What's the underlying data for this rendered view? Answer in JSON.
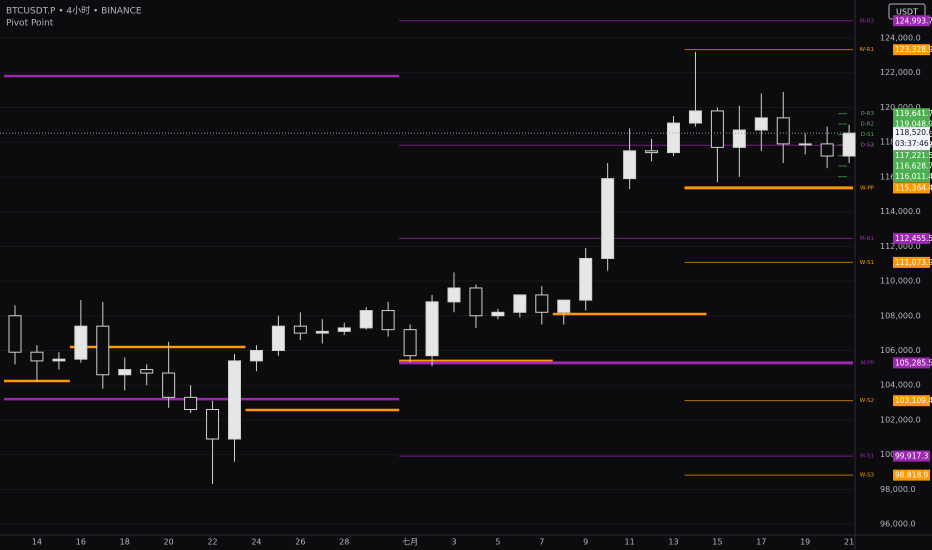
{
  "header": {
    "symbol": "BTCUSDT.P • 4小时 • BINANCE",
    "indicator": "Pivot Point",
    "currency": "USDT"
  },
  "chart_data": {
    "type": "candlestick",
    "categories": [
      null,
      "14",
      null,
      "16",
      null,
      "18",
      null,
      "20",
      null,
      "22",
      null,
      "24",
      null,
      "26",
      null,
      "28",
      null,
      null,
      "七月",
      null,
      "3",
      null,
      "5",
      null,
      "7",
      null,
      "9",
      null,
      "11",
      null,
      "13",
      null,
      "15",
      null,
      "17",
      null,
      "19",
      null,
      "21"
    ],
    "open": [
      108000,
      105900,
      105400,
      105500,
      107400,
      104600,
      104900,
      104700,
      103300,
      102600,
      100900,
      105400,
      106000,
      107400,
      107000,
      107100,
      107300,
      108300,
      107200,
      105700,
      108800,
      109600,
      108000,
      108200,
      109200,
      108200,
      108900,
      111300,
      115900,
      117500,
      117400,
      119100,
      119800,
      117700,
      118700,
      119400,
      117900,
      117900,
      117200
    ],
    "high": [
      108600,
      106300,
      105900,
      108900,
      108800,
      105600,
      105200,
      106500,
      104000,
      103100,
      105800,
      106300,
      108000,
      108200,
      107800,
      107600,
      108500,
      108800,
      107500,
      109200,
      110500,
      109800,
      108400,
      109200,
      109700,
      108900,
      111900,
      116800,
      118800,
      118200,
      119500,
      123200,
      120000,
      120100,
      120800,
      120900,
      118500,
      118900,
      119000
    ],
    "low": [
      105200,
      104200,
      104900,
      105300,
      103800,
      103700,
      104000,
      102700,
      102400,
      98300,
      99600,
      104800,
      105700,
      106600,
      106400,
      106900,
      107200,
      106800,
      105300,
      105100,
      108200,
      107300,
      107800,
      107900,
      107500,
      107500,
      108300,
      110600,
      115300,
      116900,
      117200,
      118900,
      115700,
      116000,
      117500,
      116800,
      117300,
      116500,
      116800
    ],
    "close": [
      105900,
      105400,
      105500,
      107400,
      104600,
      104900,
      104700,
      103300,
      102600,
      100900,
      105400,
      106000,
      107400,
      107000,
      107100,
      107300,
      108300,
      107200,
      105700,
      108800,
      109600,
      108000,
      108200,
      109200,
      108200,
      108900,
      111300,
      115900,
      117500,
      117400,
      119100,
      119800,
      117700,
      118700,
      119400,
      117900,
      117900,
      117200,
      118520
    ],
    "up_color": "#e6e6e6",
    "down_color": "#0c0c0e",
    "ylim": [
      95370,
      126190
    ],
    "yticks": [
      {
        "value": 96000,
        "label": "96,000.0"
      },
      {
        "value": 98000,
        "label": "98,000.0"
      },
      {
        "value": 100000,
        "label": "100,000.0"
      },
      {
        "value": 102000,
        "label": "102,000.0"
      },
      {
        "value": 104000,
        "label": "104,000.0"
      },
      {
        "value": 106000,
        "label": "106,000.0"
      },
      {
        "value": 108000,
        "label": "108,000.0"
      },
      {
        "value": 110000,
        "label": "110,000.0"
      },
      {
        "value": 112000,
        "label": "112,000.0"
      },
      {
        "value": 114000,
        "label": "114,000.0"
      },
      {
        "value": 116000,
        "label": "116,000.0"
      },
      {
        "value": 118000,
        "label": "118,000.0"
      },
      {
        "value": 120000,
        "label": "120,000.0"
      },
      {
        "value": 122000,
        "label": "122,000.0"
      },
      {
        "value": 124000,
        "label": "124,000.0"
      }
    ],
    "last_price": 118520.0,
    "last_price_label": "118,520.0",
    "countdown": "03:37:46",
    "levels": [
      {
        "name": "M-R3",
        "value": 124993.7,
        "label": "124,993.7",
        "color": "#9c27b0",
        "start": 18
      },
      {
        "name": "W-R1",
        "value": 123328.9,
        "label": "123,328.9",
        "color": "#ff9800",
        "start": 31
      },
      {
        "name": "D-R3",
        "value": 119641.7,
        "label": "119,641.7",
        "color": "#4caf50",
        "start": 38
      },
      {
        "name": "D-R2",
        "value": 119048.9,
        "label": "119,048.9",
        "color": "#4caf50",
        "start": 38
      },
      {
        "name": "D-S1",
        "value": 118431.6,
        "label": "118,431.6",
        "color": "#4caf50",
        "start": 38
      },
      {
        "name": "D-S2",
        "value": 117838.8,
        "label": "117,838.8",
        "color": "#4caf50",
        "start": 38
      },
      {
        "name": "D-S3",
        "value": 117823.7,
        "label": "117,823.7",
        "color": "#9c27b0",
        "start": 18
      },
      {
        "value": 117221.5,
        "label": "117,221.5",
        "color": "#4caf50",
        "start": 38
      },
      {
        "value": 116628.7,
        "label": "116,628.7",
        "color": "#4caf50",
        "start": 38
      },
      {
        "value": 116011.4,
        "label": "116,011.4",
        "color": "#4caf50",
        "start": 38
      },
      {
        "name": "W-PP",
        "value": 115364.4,
        "label": "115,364.4",
        "color": "#ff9800",
        "start": 31
      },
      {
        "name": "M-R1",
        "value": 112455.5,
        "label": "112,455.5",
        "color": "#9c27b0",
        "start": 18
      },
      {
        "name": "W-S1",
        "value": 111073.9,
        "label": "111,073.9",
        "color": "#ff9800",
        "start": 31
      },
      {
        "name": "M-PP",
        "value": 105285.5,
        "label": "105,285.5",
        "color": "#9c27b0",
        "start": 18
      },
      {
        "name": "W-S2",
        "value": 103109.4,
        "label": "103,109.4",
        "color": "#ff9800",
        "start": 31
      },
      {
        "name": "M-S1",
        "value": 99917.3,
        "label": "99,917.3",
        "color": "#9c27b0",
        "start": 18
      },
      {
        "name": "W-S3",
        "value": 98818.9,
        "label": "98,818.9",
        "color": "#ff9800",
        "start": 31
      }
    ],
    "past_levels": [
      {
        "value": 121810,
        "color": "#9c27b0",
        "from": 0,
        "to": 17
      },
      {
        "value": 103200,
        "color": "#9c27b0",
        "from": 0,
        "to": 17
      },
      {
        "value": 104240,
        "color": "#ff9800",
        "from": 0,
        "to": 2
      },
      {
        "value": 106200,
        "color": "#ff9800",
        "from": 3,
        "to": 10
      },
      {
        "value": 102570,
        "color": "#ff9800",
        "from": 11,
        "to": 17
      },
      {
        "value": 105400,
        "color": "#ff9800",
        "from": 18,
        "to": 24
      },
      {
        "value": 108100,
        "color": "#ff9800",
        "from": 25,
        "to": 31
      }
    ]
  }
}
